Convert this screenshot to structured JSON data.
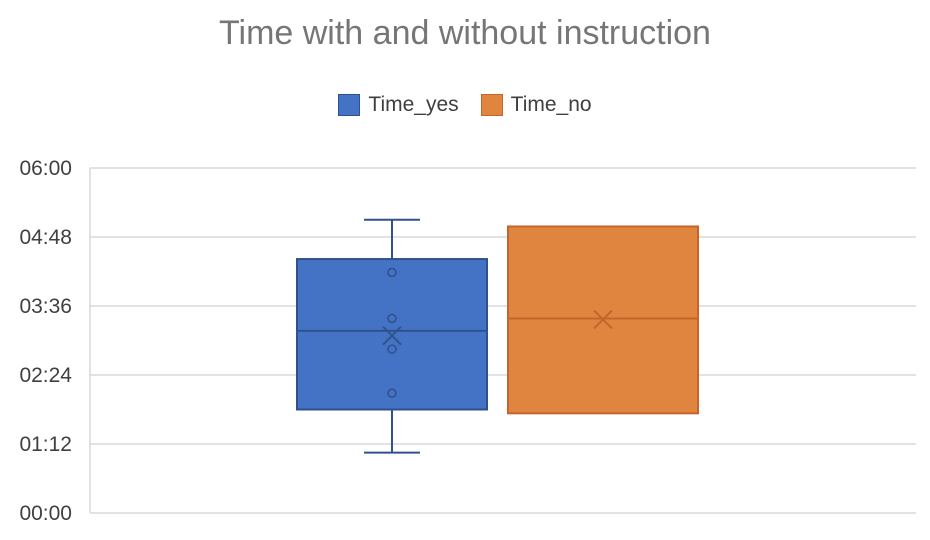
{
  "chart_data": {
    "type": "box",
    "title": "Time with and without instruction",
    "xlabel": "",
    "ylabel": "",
    "yticks": [
      "00:00",
      "01:12",
      "02:24",
      "03:36",
      "04:48",
      "06:00"
    ],
    "ylim_seconds": [
      0,
      360
    ],
    "grid": true,
    "legend_position": "top",
    "series": [
      {
        "name": "Time_yes",
        "color": "#4472c4",
        "stroke": "#2f528f",
        "min_seconds": 63,
        "q1_seconds": 108,
        "median_seconds": 190,
        "q3_seconds": 265,
        "max_seconds": 306,
        "mean_seconds": 185,
        "points_seconds": [
          125,
          171,
          203,
          251
        ]
      },
      {
        "name": "Time_no",
        "color": "#e08540",
        "stroke": "#c5652a",
        "min_seconds": 104,
        "q1_seconds": 104,
        "median_seconds": 203,
        "q3_seconds": 299,
        "max_seconds": 299,
        "mean_seconds": 202,
        "points_seconds": []
      }
    ]
  }
}
